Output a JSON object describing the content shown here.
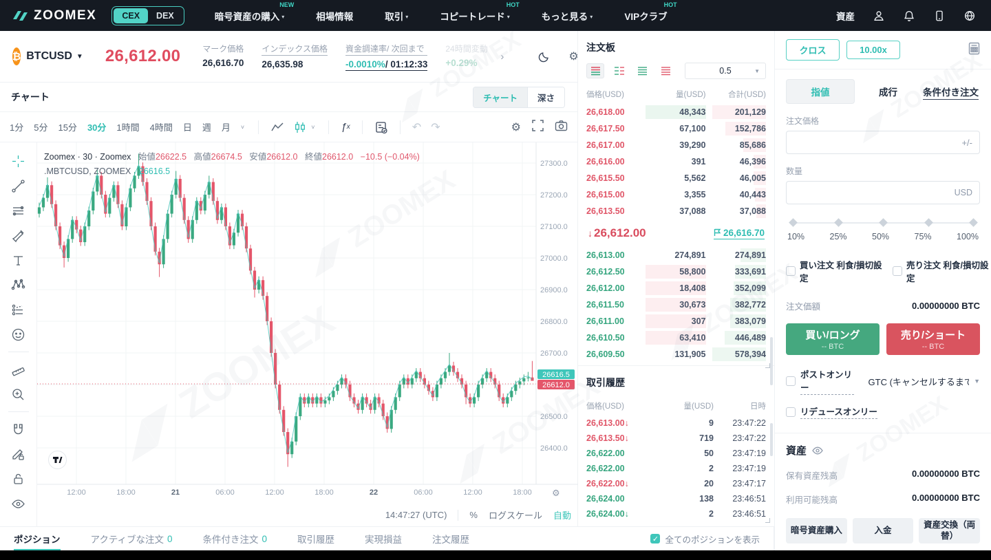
{
  "nav": {
    "brand": "ZOOMEX",
    "toggle": {
      "cex": "CEX",
      "dex": "DEX",
      "active": "CEX"
    },
    "items": [
      {
        "label": "暗号資産の購入",
        "badge": "NEW",
        "caret": true
      },
      {
        "label": "相場情報",
        "badge": "",
        "caret": false
      },
      {
        "label": "取引",
        "badge": "",
        "caret": true
      },
      {
        "label": "コピートレード",
        "badge": "HOT",
        "caret": true
      },
      {
        "label": "もっと見る",
        "badge": "",
        "caret": true
      },
      {
        "label": "VIPクラブ",
        "badge": "HOT",
        "caret": false
      }
    ],
    "assets_label": "資産",
    "right_icons": [
      "user-icon",
      "bell-icon",
      "mobile-icon",
      "globe-icon"
    ]
  },
  "ticker": {
    "symbol": "BTCUSD",
    "last_price": "26,612.00",
    "stats": [
      {
        "label": "マーク価格",
        "value": "26,616.70",
        "underline_label": false,
        "style": "plain"
      },
      {
        "label": "インデックス価格",
        "value": "26,635.98",
        "underline_label": true,
        "style": "plain"
      },
      {
        "label": "資金調達率/ 次回まで",
        "value_teal": "-0.0010%",
        "value_rest": "/ 01:12:33",
        "underline_label": true,
        "style": "funding"
      },
      {
        "label": "24時間変動",
        "value": "+0.29%",
        "underline_label": false,
        "style": "faded"
      }
    ]
  },
  "chart": {
    "panel_title": "チャート",
    "mode_chart": "チャート",
    "mode_depth": "深さ",
    "intervals": [
      "1分",
      "5分",
      "15分",
      "30分",
      "1時間",
      "4時間",
      "日",
      "週",
      "月"
    ],
    "active_interval": "30分",
    "legend": {
      "title": "Zoomex · 30 · Zoomex",
      "o_label": "始値",
      "o": "26622.5",
      "h_label": "高値",
      "h": "26674.5",
      "l_label": "安値",
      "l": "26612.0",
      "c_label": "終値",
      "c": "26612.0",
      "change": "−10.5 (−0.04%)",
      "line2_title": ".MBTCUSD, ZOOMEX",
      "line2_value": "26616.5"
    },
    "price_tags": {
      "index": "26616.5",
      "last": "26612.0"
    },
    "status": {
      "clock": "14:47:27 (UTC)",
      "percent": "%",
      "log": "ログスケール",
      "auto": "自動"
    },
    "left_tools": [
      "crosshair-icon",
      "trendline-icon",
      "parallel-lines-icon",
      "brush-icon",
      "text-icon",
      "xabcd-pattern-icon",
      "forecast-icon",
      "emoji-icon",
      "ruler-icon",
      "zoom-in-icon",
      "magnet-icon",
      "draw-lock-icon",
      "lock-icon",
      "eye-icon"
    ],
    "chart_data": {
      "type": "candlestick",
      "symbol": "BTCUSD",
      "interval_minutes": 30,
      "title": "Zoomex · 30 · Zoomex",
      "y_ticks": [
        27300.0,
        27200.0,
        27100.0,
        27000.0,
        26900.0,
        26800.0,
        26700.0,
        26600.0,
        26500.0,
        26400.0
      ],
      "ylim": [
        26340,
        27350
      ],
      "x_ticks": [
        "12:00",
        "18:00",
        "21",
        "06:00",
        "12:00",
        "18:00",
        "22",
        "06:00",
        "12:00",
        "18:00"
      ],
      "x_ticks_bold": [
        "21",
        "22"
      ],
      "last_price": 26612.0,
      "index_price": 26616.5,
      "candles": [
        [
          27140,
          27175,
          27128,
          27160
        ],
        [
          27160,
          27202,
          27148,
          27190
        ],
        [
          27190,
          27255,
          27178,
          27230
        ],
        [
          27230,
          27242,
          27158,
          27170
        ],
        [
          27170,
          27182,
          27088,
          27100
        ],
        [
          27100,
          27112,
          27028,
          27040
        ],
        [
          27040,
          27052,
          26970,
          27000
        ],
        [
          27000,
          27072,
          26988,
          27060
        ],
        [
          27060,
          27132,
          27048,
          27120
        ],
        [
          27120,
          27132,
          27078,
          27090
        ],
        [
          27090,
          27102,
          27038,
          27050
        ],
        [
          27050,
          27112,
          27038,
          27100
        ],
        [
          27100,
          27162,
          27088,
          27150
        ],
        [
          27150,
          27222,
          27138,
          27210
        ],
        [
          27210,
          27280,
          27198,
          27260
        ],
        [
          27260,
          27272,
          27188,
          27200
        ],
        [
          27200,
          27212,
          27128,
          27140
        ],
        [
          27140,
          27202,
          27128,
          27190
        ],
        [
          27190,
          27242,
          27178,
          27230
        ],
        [
          27230,
          27242,
          27158,
          27170
        ],
        [
          27170,
          27182,
          27088,
          27100
        ],
        [
          27100,
          27172,
          27088,
          27160
        ],
        [
          27160,
          27232,
          27148,
          27220
        ],
        [
          27220,
          27272,
          27208,
          27260
        ],
        [
          27260,
          27330,
          27250,
          27290
        ],
        [
          27290,
          27302,
          27228,
          27240
        ],
        [
          27240,
          27252,
          27168,
          27180
        ],
        [
          27180,
          27192,
          27088,
          27100
        ],
        [
          27100,
          27112,
          27008,
          27020
        ],
        [
          27020,
          27032,
          26940,
          26980
        ],
        [
          26980,
          27072,
          26968,
          27060
        ],
        [
          27060,
          27152,
          27048,
          27140
        ],
        [
          27140,
          27212,
          27128,
          27200
        ],
        [
          27200,
          27275,
          27188,
          27250
        ],
        [
          27250,
          27262,
          27178,
          27190
        ],
        [
          27190,
          27202,
          27108,
          27120
        ],
        [
          27120,
          27132,
          27048,
          27060
        ],
        [
          27060,
          27132,
          27048,
          27120
        ],
        [
          27120,
          27192,
          27108,
          27180
        ],
        [
          27180,
          27192,
          27138,
          27150
        ],
        [
          27150,
          27212,
          27138,
          27200
        ],
        [
          27200,
          27260,
          27188,
          27240
        ],
        [
          27240,
          27252,
          27168,
          27180
        ],
        [
          27180,
          27192,
          27108,
          27120
        ],
        [
          27120,
          27172,
          27108,
          27160
        ],
        [
          27160,
          27172,
          27088,
          27100
        ],
        [
          27100,
          27112,
          27028,
          27040
        ],
        [
          27040,
          27092,
          27028,
          27080
        ],
        [
          27080,
          27152,
          27068,
          27140
        ],
        [
          27140,
          27152,
          27088,
          27100
        ],
        [
          27100,
          27112,
          27018,
          27030
        ],
        [
          27030,
          27042,
          26948,
          26960
        ],
        [
          26960,
          26972,
          26875,
          26900
        ],
        [
          26900,
          26942,
          26888,
          26930
        ],
        [
          26930,
          26942,
          26868,
          26880
        ],
        [
          26880,
          26892,
          26788,
          26800
        ],
        [
          26800,
          26812,
          26688,
          26700
        ],
        [
          26700,
          26712,
          26588,
          26600
        ],
        [
          26600,
          26612,
          26508,
          26520
        ],
        [
          26520,
          26532,
          26438,
          26450
        ],
        [
          26450,
          26462,
          26340,
          26380
        ],
        [
          26380,
          26432,
          26368,
          26420
        ],
        [
          26420,
          26512,
          26408,
          26500
        ],
        [
          26500,
          26572,
          26488,
          26560
        ],
        [
          26560,
          26572,
          26528,
          26540
        ],
        [
          26540,
          26572,
          26528,
          26560
        ],
        [
          26560,
          26572,
          26528,
          26540
        ],
        [
          26540,
          26572,
          26528,
          26560
        ],
        [
          26560,
          26572,
          26528,
          26540
        ],
        [
          26540,
          26562,
          26528,
          26550
        ],
        [
          26550,
          26572,
          26538,
          26560
        ],
        [
          26560,
          26592,
          26548,
          26580
        ],
        [
          26580,
          26612,
          26568,
          26600
        ],
        [
          26600,
          26632,
          26588,
          26620
        ],
        [
          26620,
          26632,
          26588,
          26600
        ],
        [
          26600,
          26612,
          26548,
          26560
        ],
        [
          26560,
          26572,
          26528,
          26540
        ],
        [
          26540,
          26552,
          26508,
          26520
        ],
        [
          26520,
          26572,
          26508,
          26560
        ],
        [
          26560,
          26572,
          26528,
          26540
        ],
        [
          26540,
          26552,
          26508,
          26520
        ],
        [
          26520,
          26572,
          26508,
          26560
        ],
        [
          26560,
          26572,
          26528,
          26540
        ],
        [
          26540,
          26552,
          26488,
          26500
        ],
        [
          26500,
          26512,
          26448,
          26460
        ],
        [
          26460,
          26532,
          26448,
          26520
        ],
        [
          26520,
          26572,
          26508,
          26560
        ],
        [
          26560,
          26612,
          26548,
          26600
        ],
        [
          26600,
          26632,
          26588,
          26620
        ],
        [
          26620,
          26632,
          26588,
          26600
        ],
        [
          26600,
          26632,
          26588,
          26620
        ],
        [
          26620,
          26652,
          26608,
          26640
        ],
        [
          26640,
          26652,
          26608,
          26620
        ],
        [
          26620,
          26632,
          26588,
          26600
        ],
        [
          26600,
          26612,
          26568,
          26580
        ],
        [
          26580,
          26592,
          26548,
          26560
        ],
        [
          26560,
          26612,
          26548,
          26600
        ],
        [
          26600,
          26632,
          26588,
          26620
        ],
        [
          26620,
          26652,
          26608,
          26640
        ],
        [
          26640,
          26700,
          26628,
          26660
        ],
        [
          26660,
          26672,
          26628,
          26640
        ],
        [
          26640,
          26652,
          26608,
          26620
        ],
        [
          26620,
          26632,
          26588,
          26600
        ],
        [
          26600,
          26612,
          26538,
          26560
        ],
        [
          26560,
          26572,
          26528,
          26540
        ],
        [
          26540,
          26572,
          26528,
          26560
        ],
        [
          26560,
          26612,
          26548,
          26600
        ],
        [
          26600,
          26632,
          26588,
          26620
        ],
        [
          26620,
          26652,
          26608,
          26640
        ],
        [
          26640,
          26652,
          26608,
          26620
        ],
        [
          26620,
          26632,
          26588,
          26600
        ],
        [
          26600,
          26612,
          26548,
          26560
        ],
        [
          26560,
          26572,
          26528,
          26540
        ],
        [
          26540,
          26572,
          26528,
          26560
        ],
        [
          26560,
          26592,
          26548,
          26580
        ],
        [
          26580,
          26612,
          26568,
          26600
        ],
        [
          26600,
          26622,
          26588,
          26610
        ],
        [
          26610,
          26632,
          26598,
          26620
        ],
        [
          26620,
          26640,
          26610,
          26622.5
        ],
        [
          26622.5,
          26674.5,
          26612,
          26612
        ]
      ]
    }
  },
  "orderbook": {
    "title": "注文板",
    "tick_size": "0.5",
    "view_icons": [
      "book-both-icon",
      "book-split-icon",
      "book-bids-icon",
      "book-asks-icon"
    ],
    "headers": [
      "価格(USD)",
      "量(USD)",
      "合計(USD)"
    ],
    "asks": [
      [
        "26,618.00",
        "48,343",
        "201,129"
      ],
      [
        "26,617.50",
        "67,100",
        "152,786"
      ],
      [
        "26,617.00",
        "39,290",
        "85,686"
      ],
      [
        "26,616.00",
        "391",
        "46,396"
      ],
      [
        "26,615.50",
        "5,562",
        "46,005"
      ],
      [
        "26,615.00",
        "3,355",
        "40,443"
      ],
      [
        "26,613.50",
        "37,088",
        "37,088"
      ]
    ],
    "bids": [
      [
        "26,613.00",
        "274,891",
        "274,891"
      ],
      [
        "26,612.50",
        "58,800",
        "333,691"
      ],
      [
        "26,612.00",
        "18,408",
        "352,099"
      ],
      [
        "26,611.50",
        "30,673",
        "382,772"
      ],
      [
        "26,611.00",
        "307",
        "383,079"
      ],
      [
        "26,610.50",
        "63,410",
        "446,489"
      ],
      [
        "26,609.50",
        "131,905",
        "578,394"
      ]
    ],
    "mid_price": "26,612.00",
    "mark_price": "26,616.70"
  },
  "trades": {
    "title": "取引履歴",
    "headers": [
      "価格(USD)",
      "量(USD)",
      "日時"
    ],
    "rows": [
      {
        "price": "26,613.00",
        "side": "sell",
        "arrow": true,
        "qty": "9",
        "time": "23:47:22"
      },
      {
        "price": "26,613.50",
        "side": "sell",
        "arrow": true,
        "qty": "719",
        "time": "23:47:22"
      },
      {
        "price": "26,622.00",
        "side": "buy",
        "arrow": false,
        "qty": "50",
        "time": "23:47:19"
      },
      {
        "price": "26,622.00",
        "side": "buy",
        "arrow": false,
        "qty": "2",
        "time": "23:47:19"
      },
      {
        "price": "26,622.00",
        "side": "sell",
        "arrow": true,
        "qty": "20",
        "time": "23:47:17"
      },
      {
        "price": "26,624.00",
        "side": "buy",
        "arrow": false,
        "qty": "138",
        "time": "23:46:51"
      },
      {
        "price": "26,624.00",
        "side": "buy",
        "arrow": true,
        "qty": "2",
        "time": "23:46:51"
      }
    ]
  },
  "order_form": {
    "margin_mode": "クロス",
    "leverage": "10.00x",
    "tabs": [
      "指値",
      "成行",
      "条件付き注文"
    ],
    "active_tab": "指値",
    "price_label": "注文価格",
    "qty_label": "数量",
    "qty_unit": "USD",
    "slider_marks": [
      "10%",
      "25%",
      "50%",
      "75%",
      "100%"
    ],
    "tpsl_buy": "買い注文 利食/損切設定",
    "tpsl_sell": "売り注文 利食/損切設定",
    "order_value_label": "注文価額",
    "order_value": "0.00000000 BTC",
    "buy_label": "買い/ロング",
    "buy_sub": "-- BTC",
    "sell_label": "売り/ショート",
    "sell_sub": "-- BTC",
    "post_only": "ポストオンリー",
    "gtc": "GTC (キャンセルするまで有",
    "reduce_only": "リデュースオンリー"
  },
  "assets": {
    "title": "資産",
    "rows": [
      {
        "label": "保有資産残高",
        "value": "0.00000000 BTC"
      },
      {
        "label": "利用可能残高",
        "value": "0.00000000 BTC"
      }
    ],
    "buttons": [
      "暗号資産購入",
      "入金",
      "資産交換（両替）"
    ]
  },
  "bottom": {
    "tabs": [
      {
        "label": "ポジション",
        "count": "",
        "active": true
      },
      {
        "label": "アクティブな注文",
        "count": "0",
        "active": false
      },
      {
        "label": "条件付き注文",
        "count": "0",
        "active": false
      },
      {
        "label": "取引履歴",
        "count": "",
        "active": false
      },
      {
        "label": "実現損益",
        "count": "",
        "active": false
      },
      {
        "label": "注文履歴",
        "count": "",
        "active": false
      }
    ],
    "show_all": "全てのポジションを表示"
  },
  "colors": {
    "accent_teal": "#3fc6ba",
    "up_green": "#3aa981",
    "down_red": "#e4566a",
    "index_line": "#4cc7bc",
    "nav_bg": "#151a22",
    "btc_orange": "#f7931a"
  }
}
